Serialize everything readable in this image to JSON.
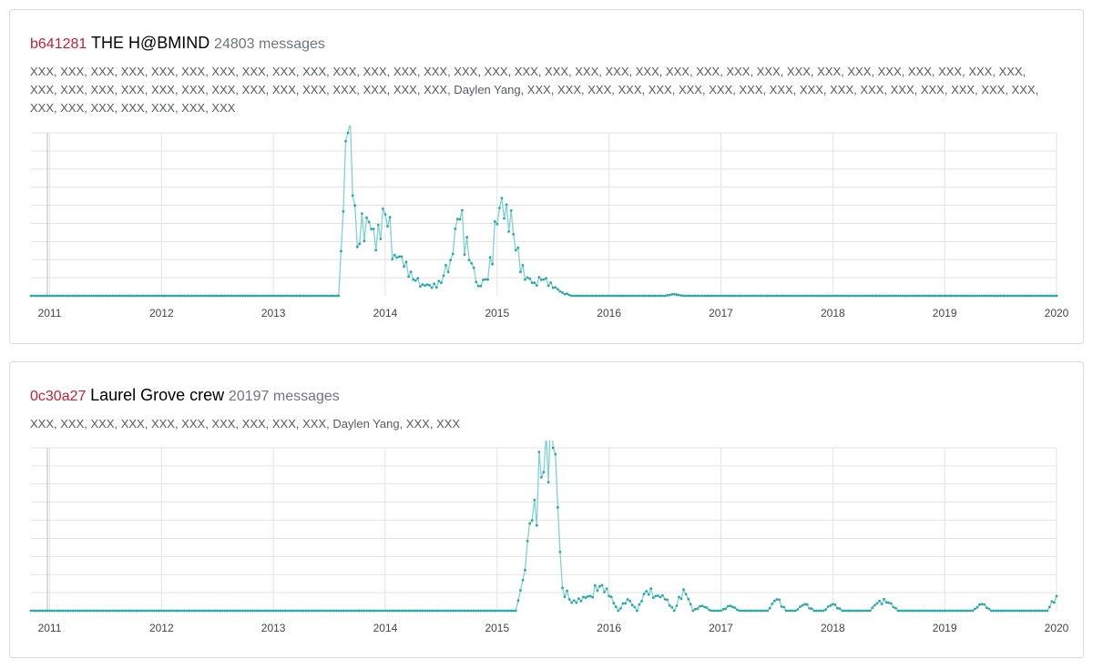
{
  "groups": [
    {
      "id": "b641281",
      "name": "THE H@BMIND",
      "count_text": "24803 messages",
      "members": "XXX, XXX, XXX, XXX, XXX, XXX, XXX, XXX, XXX, XXX, XXX, XXX, XXX, XXX, XXX, XXX, XXX, XXX, XXX, XXX, XXX, XXX, XXX, XXX, XXX, XXX, XXX, XXX, XXX, XXX, XXX, XXX, XXX, XXX, XXX, XXX, XXX, XXX, XXX, XXX, XXX, XXX, XXX, XXX, XXX, XXX, XXX, Daylen Yang, XXX, XXX, XXX, XXX, XXX, XXX, XXX, XXX, XXX, XXX, XXX, XXX, XXX, XXX, XXX, XXX, XXX, XXX, XXX, XXX, XXX, XXX, XXX, XXX"
    },
    {
      "id": "0c30a27",
      "name": "Laurel Grove crew",
      "count_text": "20197 messages",
      "members": "XXX, XXX, XXX, XXX, XXX, XXX, XXX, XXX, XXX, XXX, Daylen Yang, XXX, XXX"
    }
  ],
  "colors": {
    "line": "#7fd3d0",
    "point": "#2aa9a4",
    "grid": "#e3e3e3",
    "axis": "#b9b9b9",
    "group_id": "#c51f2f"
  },
  "chart_data": [
    {
      "type": "line",
      "x_domain": [
        "2010-11",
        "2020-01"
      ],
      "tick_labels": [
        "2011",
        "2012",
        "2013",
        "2014",
        "2015",
        "2016",
        "2017",
        "2018",
        "2019",
        "2020"
      ],
      "ylim": [
        0,
        1
      ],
      "grid": true,
      "y_tick_labels_shown": false,
      "activity_start": "2013-08",
      "activity_end": "2016-08",
      "spikes": [
        [
          "2013-09",
          1.0
        ],
        [
          "2013-10",
          0.3
        ],
        [
          "2013-11",
          0.48
        ],
        [
          "2013-12",
          0.28
        ],
        [
          "2014-01",
          0.5
        ],
        [
          "2014-02",
          0.25
        ],
        [
          "2014-03",
          0.18
        ],
        [
          "2014-04",
          0.1
        ],
        [
          "2014-05",
          0.07
        ],
        [
          "2014-06",
          0.05
        ],
        [
          "2014-07",
          0.08
        ],
        [
          "2014-08",
          0.22
        ],
        [
          "2014-09",
          0.47
        ],
        [
          "2014-10",
          0.22
        ],
        [
          "2014-11",
          0.06
        ],
        [
          "2014-12",
          0.1
        ],
        [
          "2015-01",
          0.44
        ],
        [
          "2015-02",
          0.56
        ],
        [
          "2015-03",
          0.28
        ],
        [
          "2015-04",
          0.1
        ],
        [
          "2015-05",
          0.08
        ],
        [
          "2015-06",
          0.1
        ],
        [
          "2015-07",
          0.05
        ],
        [
          "2015-08",
          0.02
        ],
        [
          "2016-08",
          0.01
        ]
      ]
    },
    {
      "type": "line",
      "x_domain": [
        "2010-11",
        "2020-01"
      ],
      "tick_labels": [
        "2011",
        "2012",
        "2013",
        "2014",
        "2015",
        "2016",
        "2017",
        "2018",
        "2019",
        "2020"
      ],
      "ylim": [
        0,
        1
      ],
      "grid": true,
      "y_tick_labels_shown": false,
      "activity_start": "2015-04",
      "activity_end": "2020-01",
      "spikes": [
        [
          "2015-04",
          0.25
        ],
        [
          "2015-05",
          0.68
        ],
        [
          "2015-06",
          0.85
        ],
        [
          "2015-07",
          1.0
        ],
        [
          "2015-08",
          0.14
        ],
        [
          "2015-09",
          0.05
        ],
        [
          "2015-10",
          0.06
        ],
        [
          "2015-11",
          0.09
        ],
        [
          "2015-12",
          0.15
        ],
        [
          "2016-01",
          0.09
        ],
        [
          "2016-03",
          0.07
        ],
        [
          "2016-05",
          0.12
        ],
        [
          "2016-06",
          0.09
        ],
        [
          "2016-07",
          0.07
        ],
        [
          "2016-09",
          0.13
        ],
        [
          "2016-11",
          0.03
        ],
        [
          "2017-02",
          0.03
        ],
        [
          "2017-07",
          0.07
        ],
        [
          "2017-10",
          0.04
        ],
        [
          "2018-01",
          0.04
        ],
        [
          "2018-06",
          0.06
        ],
        [
          "2018-07",
          0.05
        ],
        [
          "2019-05",
          0.04
        ],
        [
          "2020-01",
          0.09
        ]
      ]
    }
  ]
}
